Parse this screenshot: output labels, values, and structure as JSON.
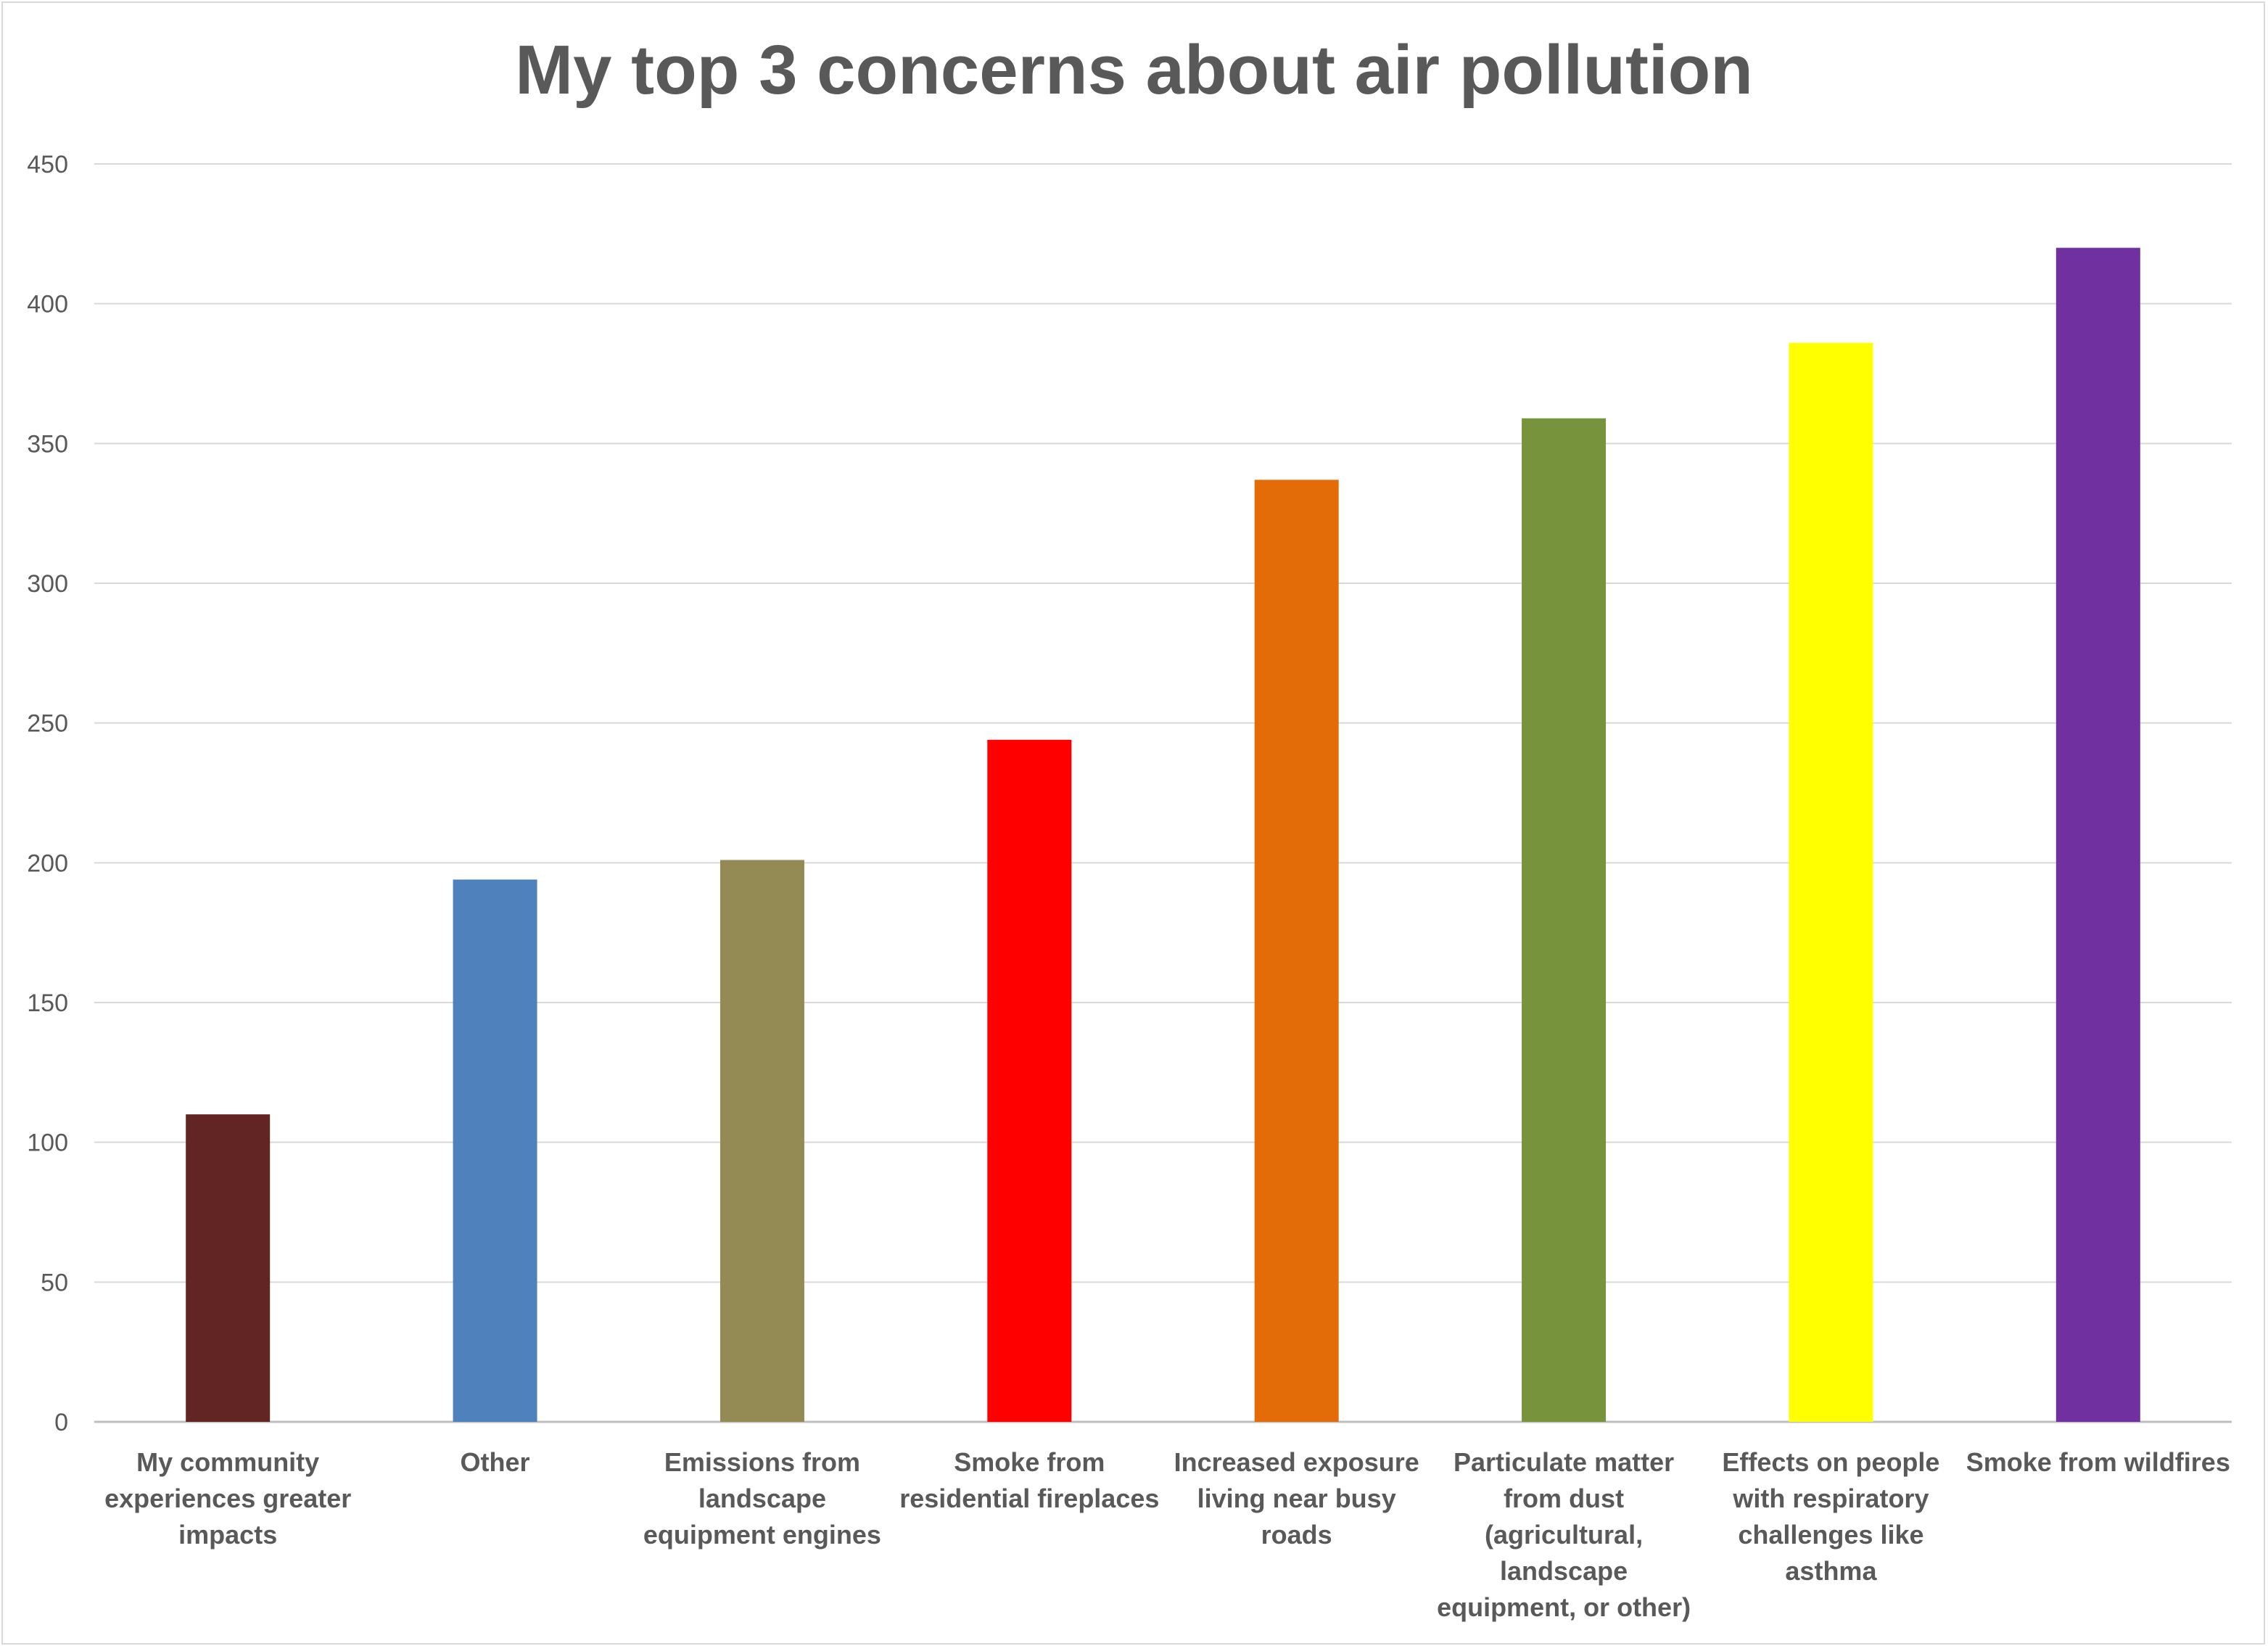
{
  "chart_data": {
    "type": "bar",
    "title": "My top 3 concerns about air pollution",
    "xlabel": "",
    "ylabel": "",
    "ylim": [
      0,
      450
    ],
    "yticks": [
      0,
      50,
      100,
      150,
      200,
      250,
      300,
      350,
      400,
      450
    ],
    "grid": true,
    "legend": "none",
    "categories": [
      "My community experiences greater impacts",
      "Other",
      "Emissions from landscape equipment engines",
      "Smoke from residential fireplaces",
      "Increased exposure living near busy roads",
      "Particulate matter from dust (agricultural, landscape equipment, or other)",
      "Effects on people with respiratory challenges like asthma",
      "Smoke from wildfires"
    ],
    "category_lines": [
      [
        "My community",
        "experiences greater",
        "impacts"
      ],
      [
        "Other"
      ],
      [
        "Emissions from",
        "landscape",
        "equipment engines"
      ],
      [
        "Smoke from",
        "residential fireplaces"
      ],
      [
        "Increased exposure",
        "living near busy",
        "roads"
      ],
      [
        "Particulate matter",
        "from dust",
        "(agricultural,",
        "landscape",
        "equipment, or other)"
      ],
      [
        "Effects on people",
        "with respiratory",
        "challenges like",
        "asthma"
      ],
      [
        "Smoke from wildfires"
      ]
    ],
    "values": [
      110,
      194,
      201,
      244,
      337,
      359,
      386,
      420
    ],
    "colors": [
      "#632523",
      "#4f81bd",
      "#948a54",
      "#ff0000",
      "#e36c09",
      "#77933c",
      "#ffff00",
      "#7030a0"
    ]
  }
}
